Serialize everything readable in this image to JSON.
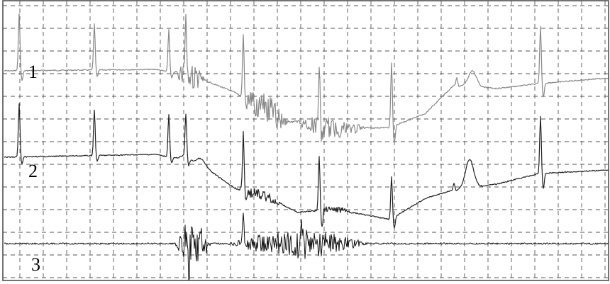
{
  "chart_data": {
    "type": "line",
    "title": "",
    "xlabel": "",
    "ylabel": "",
    "grid": true,
    "grid_style": "dashed",
    "series": [
      {
        "name": "1",
        "color": "#888888"
      },
      {
        "name": "2",
        "color": "#222222"
      },
      {
        "name": "3",
        "color": "#111111"
      }
    ]
  }
}
